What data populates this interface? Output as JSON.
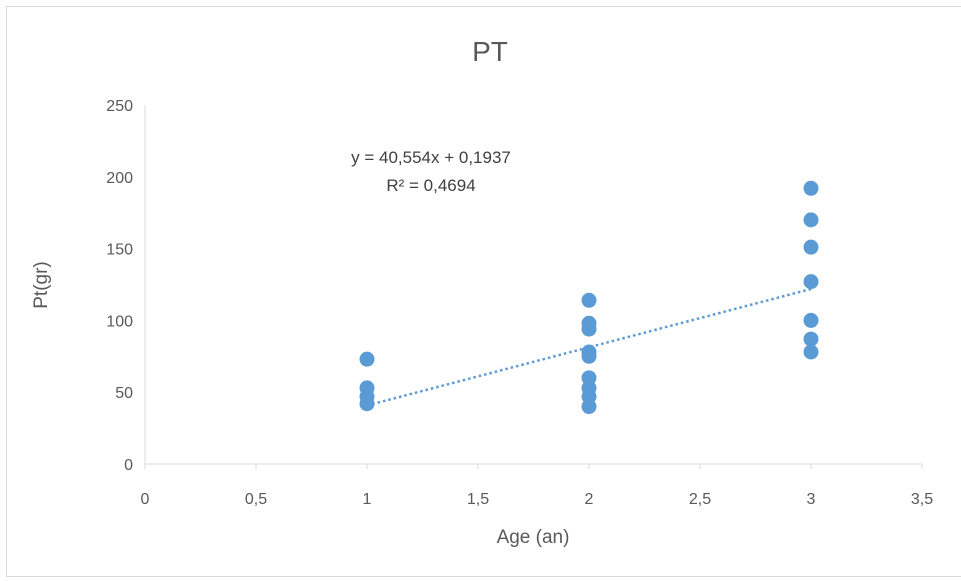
{
  "chart_data": {
    "type": "scatter",
    "title": "PT",
    "xlabel": "Age (an)",
    "ylabel": "Pt(gr)",
    "xlim": [
      0,
      3.5
    ],
    "ylim": [
      0,
      250
    ],
    "x_ticks": [
      "0",
      "0,5",
      "1",
      "1,5",
      "2",
      "2,5",
      "3",
      "3,5"
    ],
    "y_ticks": [
      "0",
      "50",
      "100",
      "150",
      "200",
      "250"
    ],
    "grid": false,
    "legend": "none",
    "series": [
      {
        "color": "#5b9bd5",
        "points": [
          [
            1,
            73
          ],
          [
            1,
            53
          ],
          [
            1,
            47
          ],
          [
            1,
            42
          ],
          [
            2,
            114
          ],
          [
            2,
            98
          ],
          [
            2,
            94
          ],
          [
            2,
            78
          ],
          [
            2,
            75
          ],
          [
            2,
            60
          ],
          [
            2,
            53
          ],
          [
            2,
            47
          ],
          [
            2,
            40
          ],
          [
            3,
            192
          ],
          [
            3,
            170
          ],
          [
            3,
            151
          ],
          [
            3,
            127
          ],
          [
            3,
            100
          ],
          [
            3,
            87
          ],
          [
            3,
            78
          ]
        ]
      }
    ],
    "trendline": {
      "type": "linear",
      "slope": 40.554,
      "intercept": 0.1937,
      "x_range": [
        1,
        3
      ],
      "equation": "y = 40,554x + 0,1937",
      "r_squared": "R² = 0,4694",
      "color": "#5b9bd5",
      "style": "dotted"
    }
  }
}
